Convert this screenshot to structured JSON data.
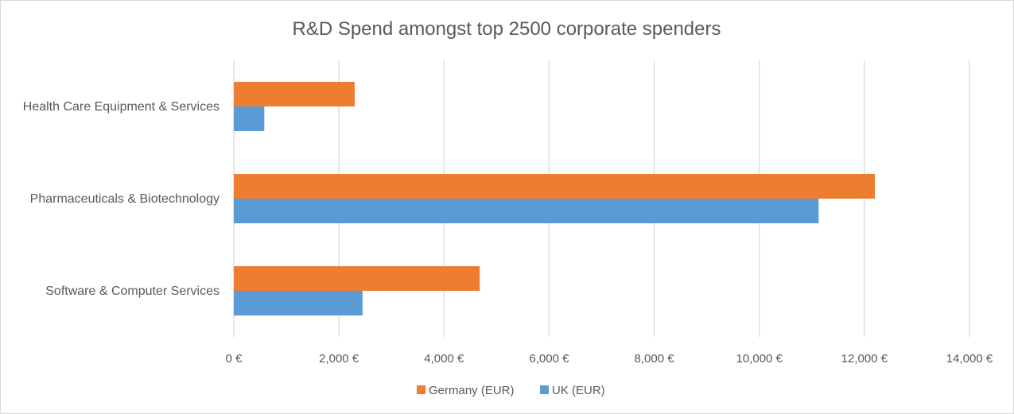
{
  "chart_data": {
    "type": "bar",
    "orientation": "horizontal",
    "title": "R&D Spend amongst top 2500 corporate spenders",
    "categories": [
      "Health Care Equipment & Services",
      "Pharmaceuticals & Biotechnology",
      "Software & Computer Services"
    ],
    "series": [
      {
        "name": "Germany (EUR)",
        "color": "#ed7d31",
        "values": [
          2300,
          12200,
          4680
        ]
      },
      {
        "name": "UK (EUR)",
        "color": "#5b9bd5",
        "values": [
          580,
          11130,
          2450
        ]
      }
    ],
    "xlim": [
      0,
      14000
    ],
    "x_ticks": [
      0,
      2000,
      4000,
      6000,
      8000,
      10000,
      12000,
      14000
    ],
    "x_tick_labels": [
      "0 €",
      "2,000 €",
      "4,000 €",
      "6,000 €",
      "8,000 €",
      "10,000 €",
      "12,000 €",
      "14,000 €"
    ],
    "grid": "vertical",
    "legend": "bottom"
  }
}
